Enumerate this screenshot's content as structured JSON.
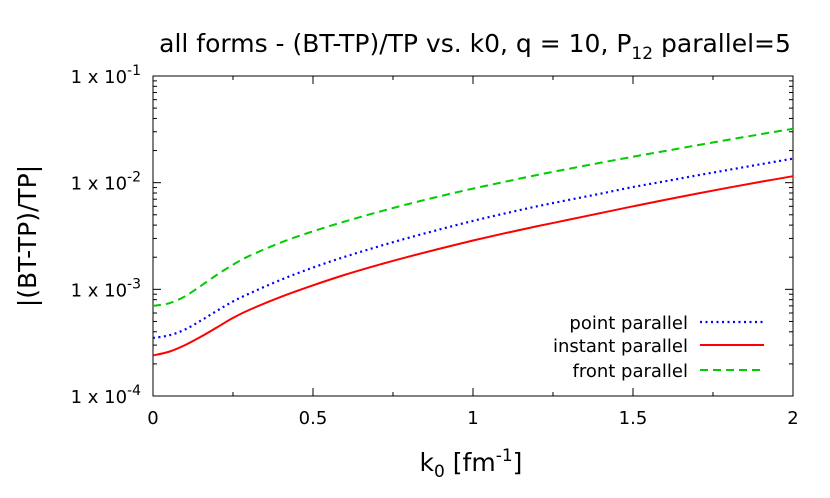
{
  "chart_data": {
    "type": "line",
    "title": {
      "main": "all forms - (BT-TP)/TP vs. k0, q = 10, P",
      "sub": "12",
      "tail": " parallel=5"
    },
    "xlabel": {
      "main": "k",
      "sub": "0",
      "mid": " [fm",
      "sup": "-1",
      "tail": "]"
    },
    "ylabel": "|(BT-TP)/TP|",
    "x_scale": "linear",
    "y_scale": "log",
    "xlim": [
      0,
      2
    ],
    "ylim": [
      0.0001,
      0.1
    ],
    "x_ticks": [
      {
        "value": 0,
        "label": "0"
      },
      {
        "value": 0.5,
        "label": "0.5"
      },
      {
        "value": 1,
        "label": "1"
      },
      {
        "value": 1.5,
        "label": "1.5"
      },
      {
        "value": 2,
        "label": "2"
      }
    ],
    "y_ticks": [
      {
        "value": 0.0001,
        "base": "1 x 10",
        "exp": "-4"
      },
      {
        "value": 0.001,
        "base": "1 x 10",
        "exp": "-3"
      },
      {
        "value": 0.01,
        "base": "1 x 10",
        "exp": "-2"
      },
      {
        "value": 0.1,
        "base": "1 x 10",
        "exp": "-1"
      }
    ],
    "legend_position": "bottom-right",
    "series": [
      {
        "name": "point parallel",
        "color": "#0000ff",
        "style": "dotted",
        "x": [
          0,
          0.05,
          0.1,
          0.15,
          0.2,
          0.25,
          0.3,
          0.4,
          0.5,
          0.6,
          0.7,
          0.8,
          0.9,
          1.0,
          1.1,
          1.2,
          1.3,
          1.4,
          1.5,
          1.6,
          1.7,
          1.8,
          1.9,
          2.0
        ],
        "y": [
          0.00035,
          0.00037,
          0.00042,
          0.00051,
          0.00063,
          0.00077,
          0.00091,
          0.00123,
          0.0016,
          0.00202,
          0.0025,
          0.00305,
          0.00367,
          0.00438,
          0.00515,
          0.006,
          0.0069,
          0.0079,
          0.0091,
          0.0103,
          0.0117,
          0.0132,
          0.0149,
          0.0168
        ]
      },
      {
        "name": "instant parallel",
        "color": "#ff0000",
        "style": "solid",
        "x": [
          0,
          0.05,
          0.1,
          0.15,
          0.2,
          0.25,
          0.3,
          0.4,
          0.5,
          0.6,
          0.7,
          0.8,
          0.9,
          1.0,
          1.1,
          1.2,
          1.3,
          1.4,
          1.5,
          1.6,
          1.7,
          1.8,
          1.9,
          2.0
        ],
        "y": [
          0.00024,
          0.00026,
          0.0003,
          0.00036,
          0.00044,
          0.00054,
          0.00064,
          0.00085,
          0.00109,
          0.00137,
          0.00168,
          0.00203,
          0.00242,
          0.00287,
          0.00336,
          0.0039,
          0.0045,
          0.0052,
          0.006,
          0.0069,
          0.0079,
          0.009,
          0.0102,
          0.0115
        ]
      },
      {
        "name": "front parallel",
        "color": "#00cc00",
        "style": "dashed",
        "x": [
          0,
          0.05,
          0.1,
          0.15,
          0.2,
          0.25,
          0.3,
          0.4,
          0.5,
          0.6,
          0.7,
          0.8,
          0.9,
          1.0,
          1.1,
          1.2,
          1.3,
          1.4,
          1.5,
          1.6,
          1.7,
          1.8,
          1.9,
          2.0
        ],
        "y": [
          0.0007,
          0.00074,
          0.00086,
          0.00108,
          0.00137,
          0.0017,
          0.00205,
          0.00275,
          0.0035,
          0.00433,
          0.00527,
          0.00633,
          0.0075,
          0.0088,
          0.0102,
          0.0118,
          0.0135,
          0.0154,
          0.0175,
          0.0198,
          0.0224,
          0.0253,
          0.0285,
          0.032
        ]
      }
    ]
  }
}
